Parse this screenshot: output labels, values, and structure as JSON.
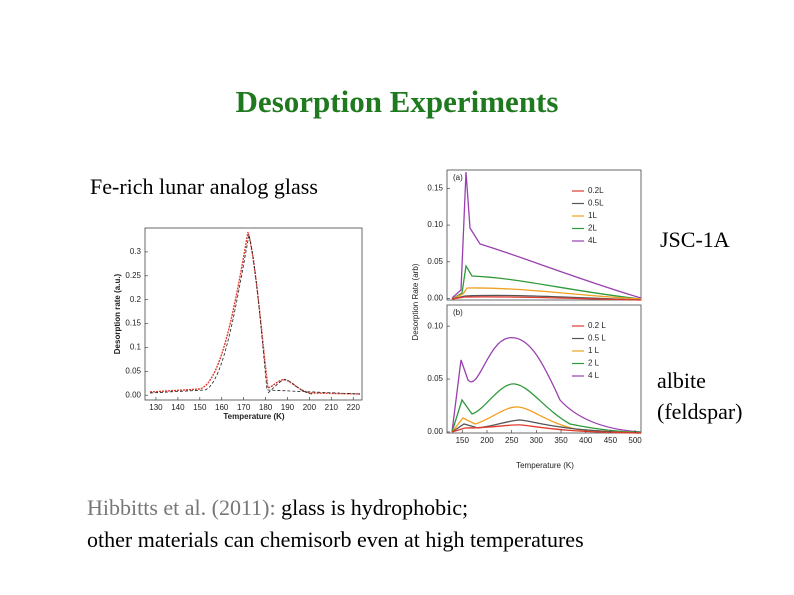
{
  "title": "Desorption Experiments",
  "left_caption": "Fe-rich lunar analog glass",
  "right_captions": [
    "JSC-1A",
    "albite",
    "(feldspar)"
  ],
  "citation": {
    "source": "Hibbitts et al. (2011):",
    "line1": " glass is hydrophobic;",
    "line2": "other materials can chemisorb even at high temperatures"
  },
  "left_plot": {
    "y_label": "Desorption rate (a.u.)",
    "x_label": "Temperature (K)",
    "xlim": [
      125,
      224
    ],
    "xticks": [
      130,
      140,
      150,
      160,
      170,
      180,
      190,
      200,
      210,
      220
    ],
    "ylim": [
      -0.01,
      0.35
    ],
    "yticks": [
      {
        "value": 0,
        "label": "0.00"
      },
      0.05,
      0.1,
      0.15,
      0.2,
      0.25,
      0.3
    ]
  },
  "right_plot": {
    "y_label": "Desorption Rate (arb)",
    "x_label": "Temperature (K)",
    "xlim": [
      119,
      512
    ],
    "xticks": [
      150,
      200,
      250,
      300,
      350,
      400,
      450,
      500
    ],
    "panels": [
      {
        "tag": "(a)",
        "ylim": [
          -0.002,
          0.175
        ],
        "yticks": [
          {
            "value": 0,
            "label": "0.00"
          },
          {
            "value": 0.05,
            "label": "0.05"
          },
          {
            "value": 0.1,
            "label": "0.10"
          },
          0.15
        ],
        "legend": [
          {
            "name": "0.2L",
            "color": "#e03a2f"
          },
          {
            "name": "0.5L",
            "color": "#555555"
          },
          {
            "name": "1L",
            "color": "#f0a020"
          },
          {
            "name": "2L",
            "color": "#2f9a3a"
          },
          {
            "name": "4L",
            "color": "#9a3fb0"
          }
        ]
      },
      {
        "tag": "(b)",
        "ylim": [
          -0.001,
          0.12
        ],
        "yticks": [
          {
            "value": 0,
            "label": "0.00"
          },
          {
            "value": 0.05,
            "label": "0.05"
          },
          {
            "value": 0.1,
            "label": "0.10"
          }
        ],
        "legend": [
          {
            "name": "0.2 L",
            "color": "#e03a2f"
          },
          {
            "name": "0.5 L",
            "color": "#555555"
          },
          {
            "name": "1 L",
            "color": "#f0a020"
          },
          {
            "name": "2 L",
            "color": "#2f9a3a"
          },
          {
            "name": "4 L",
            "color": "#9a3fb0"
          }
        ]
      }
    ]
  }
}
